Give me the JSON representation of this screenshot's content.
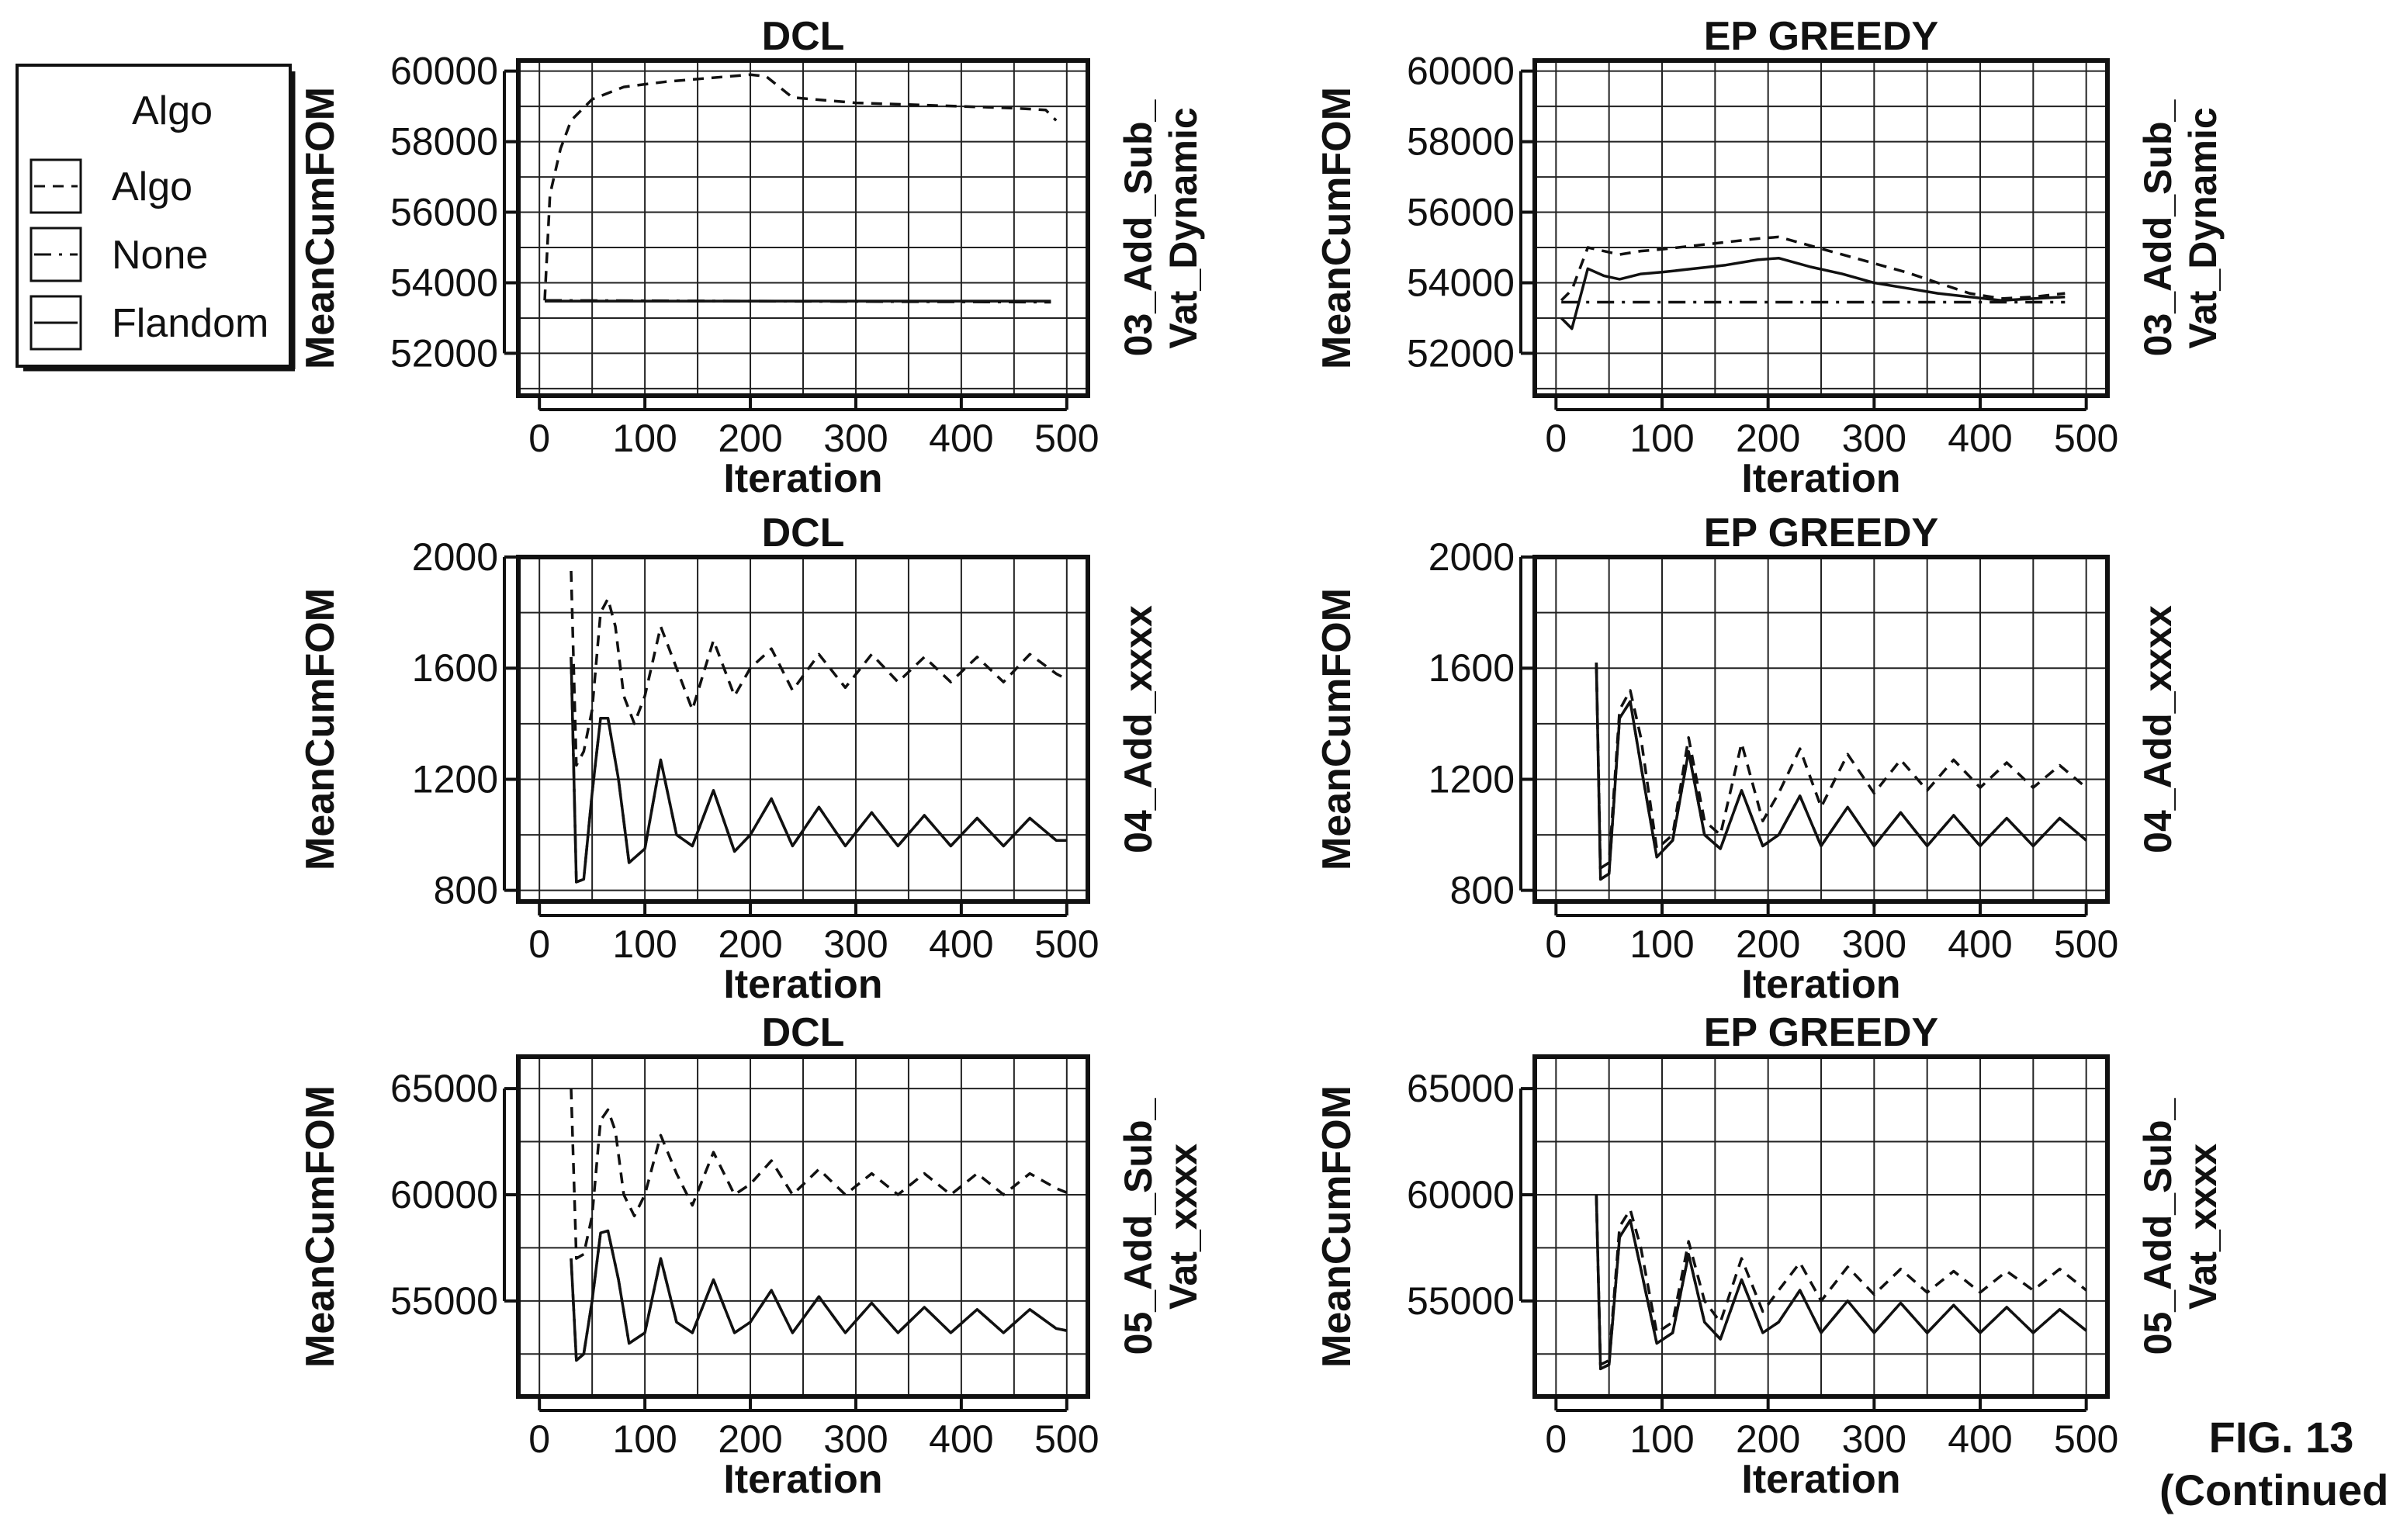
{
  "legend": {
    "title": "Algo",
    "entries": [
      {
        "label": "Algo",
        "dash": "14 10"
      },
      {
        "label": "None",
        "dash": "22 10 4 10"
      },
      {
        "label": "Flandom",
        "dash": ""
      }
    ]
  },
  "figure_label": {
    "line1": "FIG. 13",
    "line2": "(Continued)"
  },
  "chart_data": [
    {
      "type": "line",
      "title": "DCL",
      "xlabel": "Iteration",
      "ylabel": "MeanCumFOM",
      "strip_label": [
        "03_Add_Sub_",
        "Vat_Dynamic"
      ],
      "xlim": [
        -20,
        520
      ],
      "ylim": [
        50800,
        60300
      ],
      "xticks": [
        0,
        100,
        200,
        300,
        400,
        500
      ],
      "yticks": [
        52000,
        54000,
        56000,
        58000,
        60000
      ],
      "grid": true,
      "series": [
        {
          "name": "Algo",
          "x": [
            5,
            10,
            20,
            30,
            50,
            80,
            120,
            160,
            200,
            215,
            240,
            300,
            350,
            400,
            450,
            480,
            490
          ],
          "y": [
            53500,
            56500,
            57800,
            58600,
            59200,
            59550,
            59700,
            59800,
            59900,
            59850,
            59250,
            59100,
            59050,
            59000,
            58950,
            58900,
            58600
          ]
        },
        {
          "name": "None",
          "x": [
            5,
            485
          ],
          "y": [
            53500,
            53450
          ]
        },
        {
          "name": "Flandom",
          "x": [
            5,
            485
          ],
          "y": [
            53480,
            53480
          ]
        }
      ]
    },
    {
      "type": "line",
      "title": "EP GREEDY",
      "xlabel": "Iteration",
      "ylabel": "MeanCumFOM",
      "strip_label": [
        "03_Add_Sub_",
        "Vat_Dynamic"
      ],
      "xlim": [
        -20,
        520
      ],
      "ylim": [
        50800,
        60300
      ],
      "xticks": [
        0,
        100,
        200,
        300,
        400,
        500
      ],
      "yticks": [
        52000,
        54000,
        56000,
        58000,
        60000
      ],
      "grid": true,
      "series": [
        {
          "name": "Algo",
          "x": [
            5,
            15,
            30,
            45,
            60,
            80,
            100,
            130,
            160,
            190,
            210,
            240,
            270,
            300,
            330,
            360,
            390,
            420,
            450,
            480
          ],
          "y": [
            53500,
            53800,
            55000,
            54900,
            54800,
            54900,
            54950,
            55050,
            55150,
            55250,
            55300,
            55050,
            54800,
            54550,
            54300,
            54000,
            53700,
            53550,
            53600,
            53700
          ]
        },
        {
          "name": "None",
          "x": [
            5,
            480
          ],
          "y": [
            53450,
            53450
          ]
        },
        {
          "name": "Flandom",
          "x": [
            5,
            15,
            30,
            45,
            60,
            80,
            100,
            130,
            160,
            190,
            210,
            240,
            270,
            300,
            330,
            360,
            390,
            420,
            450,
            480
          ],
          "y": [
            53000,
            52700,
            54400,
            54200,
            54100,
            54250,
            54300,
            54400,
            54500,
            54650,
            54700,
            54450,
            54250,
            54000,
            53850,
            53700,
            53600,
            53500,
            53550,
            53600
          ]
        }
      ]
    },
    {
      "type": "line",
      "title": "DCL",
      "xlabel": "Iteration",
      "ylabel": "MeanCumFOM",
      "strip_label": [
        "04_Add_xxxx"
      ],
      "xlim": [
        -20,
        520
      ],
      "ylim": [
        760,
        2000
      ],
      "xticks": [
        0,
        100,
        200,
        300,
        400,
        500
      ],
      "yticks": [
        800,
        1200,
        1600,
        2000
      ],
      "grid": true,
      "series": [
        {
          "name": "Algo",
          "x": [
            30,
            35,
            42,
            50,
            58,
            65,
            72,
            80,
            90,
            100,
            115,
            130,
            145,
            165,
            185,
            200,
            220,
            240,
            265,
            290,
            315,
            340,
            365,
            390,
            415,
            440,
            465,
            490,
            500
          ],
          "y": [
            1950,
            1250,
            1300,
            1450,
            1800,
            1850,
            1750,
            1500,
            1400,
            1500,
            1750,
            1600,
            1450,
            1700,
            1500,
            1600,
            1670,
            1520,
            1650,
            1530,
            1650,
            1550,
            1640,
            1550,
            1640,
            1550,
            1650,
            1580,
            1560
          ]
        },
        {
          "name": "None",
          "x": [
            30,
            35,
            42,
            50,
            58,
            65,
            75,
            85,
            100,
            115,
            130,
            145,
            165,
            185,
            200,
            220,
            240,
            265,
            290,
            315,
            340,
            365,
            390,
            415,
            440,
            465,
            490,
            500
          ],
          "y": [
            1640,
            830,
            840,
            1150,
            1420,
            1420,
            1200,
            900,
            950,
            1270,
            1000,
            960,
            1160,
            940,
            1000,
            1130,
            960,
            1100,
            960,
            1080,
            960,
            1070,
            960,
            1060,
            960,
            1060,
            980,
            980
          ]
        },
        {
          "name": "Flandom",
          "x": [
            30,
            35,
            42,
            50,
            58,
            65,
            75,
            85,
            100,
            115,
            130,
            145,
            165,
            185,
            200,
            220,
            240,
            265,
            290,
            315,
            340,
            365,
            390,
            415,
            440,
            465,
            490,
            500
          ],
          "y": [
            1640,
            830,
            840,
            1150,
            1420,
            1420,
            1200,
            900,
            950,
            1270,
            1000,
            960,
            1160,
            940,
            1000,
            1130,
            960,
            1100,
            960,
            1080,
            960,
            1070,
            960,
            1060,
            960,
            1060,
            980,
            980
          ]
        }
      ]
    },
    {
      "type": "line",
      "title": "EP GREEDY",
      "xlabel": "Iteration",
      "ylabel": "MeanCumFOM",
      "strip_label": [
        "04_Add_xxxx"
      ],
      "xlim": [
        -20,
        520
      ],
      "ylim": [
        760,
        2000
      ],
      "xticks": [
        0,
        100,
        200,
        300,
        400,
        500
      ],
      "yticks": [
        800,
        1200,
        1600,
        2000
      ],
      "grid": true,
      "series": [
        {
          "name": "Algo",
          "x": [
            38,
            42,
            50,
            60,
            70,
            80,
            95,
            110,
            125,
            140,
            155,
            175,
            195,
            210,
            230,
            250,
            275,
            300,
            325,
            350,
            375,
            400,
            425,
            450,
            475,
            500
          ],
          "y": [
            1620,
            880,
            900,
            1450,
            1520,
            1350,
            950,
            1000,
            1350,
            1050,
            1000,
            1330,
            1050,
            1150,
            1310,
            1100,
            1290,
            1150,
            1270,
            1160,
            1270,
            1170,
            1260,
            1170,
            1250,
            1170
          ]
        },
        {
          "name": "None",
          "x": [
            38,
            42,
            50,
            60,
            70,
            80,
            95,
            110,
            125,
            140,
            155,
            175,
            195,
            210,
            230,
            250,
            275,
            300,
            325,
            350,
            375,
            400,
            425,
            450,
            475,
            500
          ],
          "y": [
            1620,
            840,
            860,
            1420,
            1480,
            1250,
            920,
            980,
            1300,
            1000,
            950,
            1160,
            960,
            1000,
            1140,
            960,
            1100,
            960,
            1080,
            960,
            1070,
            960,
            1060,
            960,
            1060,
            980
          ]
        },
        {
          "name": "Flandom",
          "x": [
            38,
            42,
            50,
            60,
            70,
            80,
            95,
            110,
            125,
            140,
            155,
            175,
            195,
            210,
            230,
            250,
            275,
            300,
            325,
            350,
            375,
            400,
            425,
            450,
            475,
            500
          ],
          "y": [
            1620,
            840,
            860,
            1420,
            1480,
            1250,
            920,
            980,
            1300,
            1000,
            950,
            1160,
            960,
            1000,
            1140,
            960,
            1100,
            960,
            1080,
            960,
            1070,
            960,
            1060,
            960,
            1060,
            980
          ]
        }
      ]
    },
    {
      "type": "line",
      "title": "DCL",
      "xlabel": "Iteration",
      "ylabel": "MeanCumFOM",
      "strip_label": [
        "05_Add_Sub_",
        "Vat_xxxx"
      ],
      "xlim": [
        -20,
        520
      ],
      "ylim": [
        50500,
        66500
      ],
      "xticks": [
        0,
        100,
        200,
        300,
        400,
        500
      ],
      "yticks": [
        55000,
        60000,
        65000
      ],
      "grid": true,
      "series": [
        {
          "name": "Algo",
          "x": [
            30,
            35,
            42,
            50,
            58,
            65,
            72,
            80,
            90,
            100,
            115,
            130,
            145,
            165,
            185,
            200,
            220,
            240,
            265,
            290,
            315,
            340,
            365,
            390,
            415,
            440,
            465,
            490,
            500
          ],
          "y": [
            65000,
            57000,
            57200,
            59000,
            63500,
            64000,
            63000,
            60000,
            59000,
            60000,
            62800,
            61000,
            59500,
            62000,
            60000,
            60500,
            61600,
            60000,
            61200,
            60000,
            61000,
            60000,
            61000,
            60000,
            61000,
            60000,
            61000,
            60300,
            60100
          ]
        },
        {
          "name": "None",
          "x": [
            30,
            35,
            42,
            50,
            58,
            65,
            75,
            85,
            100,
            115,
            130,
            145,
            165,
            185,
            200,
            220,
            240,
            265,
            290,
            315,
            340,
            365,
            390,
            415,
            440,
            465,
            490,
            500
          ],
          "y": [
            57000,
            52200,
            52500,
            55000,
            58200,
            58300,
            56000,
            53000,
            53500,
            57000,
            54000,
            53500,
            56000,
            53500,
            54000,
            55500,
            53500,
            55200,
            53500,
            54900,
            53500,
            54700,
            53500,
            54600,
            53500,
            54600,
            53700,
            53600
          ]
        },
        {
          "name": "Flandom",
          "x": [
            30,
            35,
            42,
            50,
            58,
            65,
            75,
            85,
            100,
            115,
            130,
            145,
            165,
            185,
            200,
            220,
            240,
            265,
            290,
            315,
            340,
            365,
            390,
            415,
            440,
            465,
            490,
            500
          ],
          "y": [
            57000,
            52200,
            52500,
            55000,
            58200,
            58300,
            56000,
            53000,
            53500,
            57000,
            54000,
            53500,
            56000,
            53500,
            54000,
            55500,
            53500,
            55200,
            53500,
            54900,
            53500,
            54700,
            53500,
            54600,
            53500,
            54600,
            53700,
            53600
          ]
        }
      ]
    },
    {
      "type": "line",
      "title": "EP GREEDY",
      "xlabel": "Iteration",
      "ylabel": "MeanCumFOM",
      "strip_label": [
        "05_Add_Sub_",
        "Vat_xxxx"
      ],
      "xlim": [
        -20,
        520
      ],
      "ylim": [
        50500,
        66500
      ],
      "xticks": [
        0,
        100,
        200,
        300,
        400,
        500
      ],
      "yticks": [
        55000,
        60000,
        65000
      ],
      "grid": true,
      "series": [
        {
          "name": "Algo",
          "x": [
            38,
            42,
            50,
            60,
            70,
            80,
            95,
            110,
            125,
            140,
            155,
            175,
            195,
            210,
            230,
            250,
            275,
            300,
            325,
            350,
            375,
            400,
            425,
            450,
            475,
            500
          ],
          "y": [
            60000,
            52000,
            52200,
            58500,
            59300,
            57500,
            53500,
            54000,
            57800,
            55000,
            54000,
            57000,
            54500,
            55500,
            56800,
            55000,
            56600,
            55300,
            56500,
            55400,
            56400,
            55400,
            56400,
            55500,
            56500,
            55500
          ]
        },
        {
          "name": "None",
          "x": [
            38,
            42,
            50,
            60,
            70,
            80,
            95,
            110,
            125,
            140,
            155,
            175,
            195,
            210,
            230,
            250,
            275,
            300,
            325,
            350,
            375,
            400,
            425,
            450,
            475,
            500
          ],
          "y": [
            60000,
            51800,
            52000,
            58000,
            58800,
            56500,
            53000,
            53500,
            57200,
            54000,
            53200,
            56000,
            53500,
            54000,
            55500,
            53500,
            55000,
            53500,
            54900,
            53500,
            54800,
            53500,
            54700,
            53500,
            54600,
            53600
          ]
        },
        {
          "name": "Flandom",
          "x": [
            38,
            42,
            50,
            60,
            70,
            80,
            95,
            110,
            125,
            140,
            155,
            175,
            195,
            210,
            230,
            250,
            275,
            300,
            325,
            350,
            375,
            400,
            425,
            450,
            475,
            500
          ],
          "y": [
            60000,
            51800,
            52000,
            58000,
            58800,
            56500,
            53000,
            53500,
            57200,
            54000,
            53200,
            56000,
            53500,
            54000,
            55500,
            53500,
            55000,
            53500,
            54900,
            53500,
            54800,
            53500,
            54700,
            53500,
            54600,
            53600
          ]
        }
      ]
    }
  ]
}
